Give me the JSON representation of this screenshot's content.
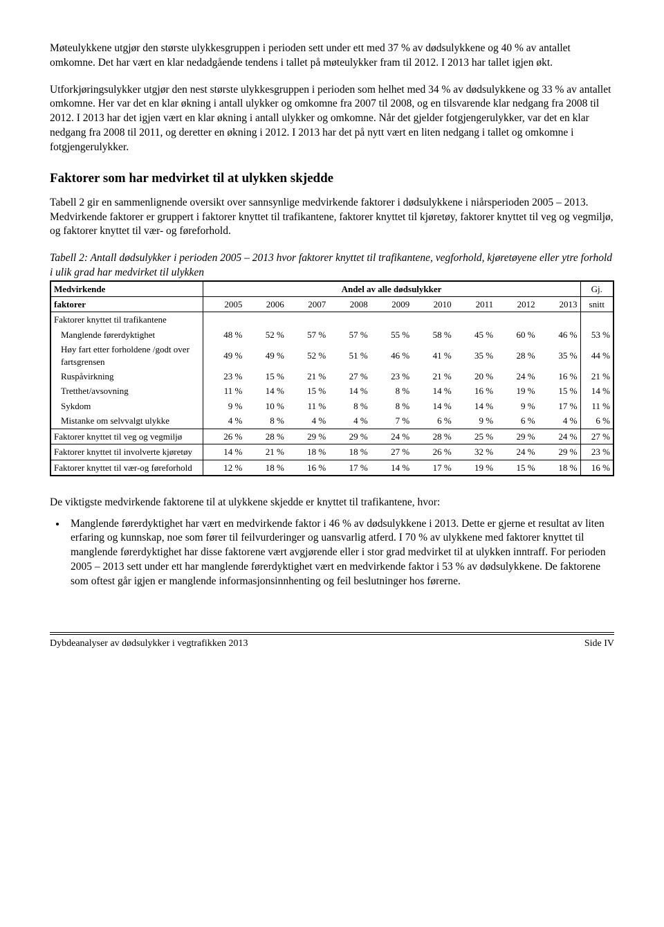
{
  "para1": "Møteulykkene utgjør den største ulykkesgruppen i perioden sett under ett med 37 % av dødsulykkene og 40 % av antallet omkomne. Det har vært en klar nedadgående tendens i tallet på møteulykker fram til 2012. I 2013 har tallet igjen økt.",
  "para2": "Utforkjøringsulykker utgjør den nest største ulykkesgruppen i perioden som helhet med 34 % av dødsulykkene og 33 % av antallet omkomne. Her var det en klar økning i antall ulykker og omkomne fra 2007 til 2008, og en tilsvarende klar nedgang fra 2008 til 2012. I 2013 har det igjen vært en klar økning i antall ulykker og omkomne. Når det gjelder fotgjengerulykker, var det en klar nedgang fra 2008 til 2011, og deretter en økning i 2012. I 2013 har det på nytt vært en liten nedgang i tallet og omkomne i fotgjengerulykker.",
  "section_heading": "Faktorer som har medvirket til at ulykken skjedde",
  "para3": "Tabell 2 gir en sammenlignende oversikt over sannsynlige medvirkende faktorer i dødsulykkene i niårsperioden 2005 – 2013. Medvirkende faktorer er gruppert i faktorer knyttet til trafikantene, faktorer knyttet til kjøretøy, faktorer knyttet til veg og vegmiljø, og faktorer knyttet til vær- og føreforhold.",
  "table_caption": "Tabell 2: Antall dødsulykker i perioden 2005 – 2013 hvor faktorer knyttet til trafikantene, vegforhold, kjøretøyene eller ytre forhold i ulik grad har medvirket til ulykken",
  "table": {
    "header_left_top": "Medvirkende",
    "header_left_bottom": "faktorer",
    "header_span": "Andel av alle dødsulykker",
    "years": [
      "2005",
      "2006",
      "2007",
      "2008",
      "2009",
      "2010",
      "2011",
      "2012",
      "2013"
    ],
    "avg_label_top": "Gj.",
    "avg_label_bottom": "snitt",
    "group_trafikantene": "Faktorer knyttet til trafikantene",
    "rows_trafikantene": [
      {
        "label": "Manglende førerdyktighet",
        "v": [
          "48 %",
          "52 %",
          "57 %",
          "57 %",
          "55 %",
          "58 %",
          "45 %",
          "60 %",
          "46 %"
        ],
        "avg": "53 %"
      },
      {
        "label": "Høy fart etter forholdene /godt over fartsgrensen",
        "v": [
          "49 %",
          "49 %",
          "52 %",
          "51 %",
          "46 %",
          "41 %",
          "35 %",
          "28 %",
          "35 %"
        ],
        "avg": "44 %"
      },
      {
        "label": "Ruspåvirkning",
        "v": [
          "23 %",
          "15 %",
          "21 %",
          "27 %",
          "23 %",
          "21 %",
          "20 %",
          "24 %",
          "16 %"
        ],
        "avg": "21 %"
      },
      {
        "label": "Tretthet/avsovning",
        "v": [
          "11 %",
          "14 %",
          "15 %",
          "14 %",
          "8 %",
          "14 %",
          "16 %",
          "19 %",
          "15 %"
        ],
        "avg": "14 %"
      },
      {
        "label": "Sykdom",
        "v": [
          "9 %",
          "10 %",
          "11 %",
          "8 %",
          "8 %",
          "14 %",
          "14 %",
          "9 %",
          "17 %"
        ],
        "avg": "11 %"
      },
      {
        "label": "Mistanke om selvvalgt ulykke",
        "v": [
          "4 %",
          "8 %",
          "4 %",
          "4 %",
          "7 %",
          "6 %",
          "9 %",
          "6 %",
          "4 %"
        ],
        "avg": "6 %"
      }
    ],
    "row_veg": {
      "label": "Faktorer knyttet til veg og vegmiljø",
      "v": [
        "26 %",
        "28 %",
        "29 %",
        "29 %",
        "24 %",
        "28 %",
        "25 %",
        "29 %",
        "24 %"
      ],
      "avg": "27 %"
    },
    "row_kjoretoy": {
      "label": "Faktorer knyttet til involverte kjøretøy",
      "v": [
        "14 %",
        "21 %",
        "18 %",
        "18 %",
        "27 %",
        "26 %",
        "32 %",
        "24 %",
        "29 %"
      ],
      "avg": "23 %"
    },
    "row_vaer": {
      "label": "Faktorer knyttet til vær-og føreforhold",
      "v": [
        "12 %",
        "18 %",
        "16 %",
        "17 %",
        "14 %",
        "17 %",
        "19 %",
        "15 %",
        "18 %"
      ],
      "avg": "16 %"
    }
  },
  "after_para": "De viktigste medvirkende faktorene til at ulykkene skjedde er knyttet til trafikantene, hvor:",
  "bullet1": "Manglende førerdyktighet har vært en medvirkende faktor i 46 % av dødsulykkene i 2013. Dette er gjerne et resultat av liten erfaring og kunnskap, noe som fører til feilvurderinger og uansvarlig atferd. I 70 % av ulykkene med faktorer knyttet til manglende førerdyktighet har disse faktorene vært avgjørende eller i stor grad medvirket til at ulykken inntraff. For perioden 2005 – 2013 sett under ett har manglende førerdyktighet vært en medvirkende faktor i 53 % av dødsulykkene. De faktorene som oftest går igjen er manglende informasjonsinnhenting og feil beslutninger hos førerne.",
  "footer_left": "Dybdeanalyser av dødsulykker i vegtrafikken 2013",
  "footer_right": "Side IV"
}
